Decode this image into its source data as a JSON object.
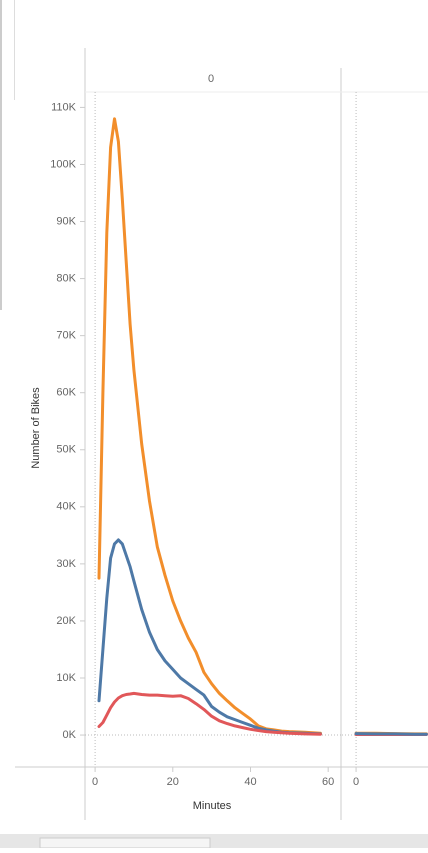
{
  "chart_data": [
    {
      "type": "line",
      "header": "0",
      "y_label": "Number of Bikes",
      "x_label": "Minutes",
      "xlim": [
        -2.6,
        63.3
      ],
      "xticks": [
        0,
        20,
        40,
        60
      ],
      "ylim": [
        -5600,
        112700
      ],
      "yticks": [
        {
          "value": 0,
          "label": "0K"
        },
        {
          "value": 10000,
          "label": "10K"
        },
        {
          "value": 20000,
          "label": "20K"
        },
        {
          "value": 30000,
          "label": "30K"
        },
        {
          "value": 40000,
          "label": "40K"
        },
        {
          "value": 50000,
          "label": "50K"
        },
        {
          "value": 60000,
          "label": "60K"
        },
        {
          "value": 70000,
          "label": "70K"
        },
        {
          "value": 80000,
          "label": "80K"
        },
        {
          "value": 90000,
          "label": "90K"
        },
        {
          "value": 100000,
          "label": "100K"
        },
        {
          "value": 110000,
          "label": "110K"
        }
      ],
      "x": [
        1,
        2,
        3,
        4,
        5,
        6,
        7,
        8,
        9,
        10,
        12,
        14,
        16,
        18,
        20,
        22,
        24,
        26,
        28,
        30,
        32,
        34,
        36,
        38,
        40,
        42,
        44,
        46,
        48,
        50,
        54,
        58
      ],
      "series": [
        {
          "color": "#f28e2b",
          "values": [
            27500,
            60000,
            88000,
            103000,
            108000,
            104000,
            94000,
            83000,
            72000,
            64000,
            51000,
            41000,
            33000,
            28000,
            23500,
            20000,
            17000,
            14500,
            11000,
            9000,
            7300,
            6000,
            4800,
            3800,
            2800,
            1600,
            1100,
            900,
            700,
            600,
            500,
            300
          ]
        },
        {
          "color": "#4e79a7",
          "values": [
            6000,
            15000,
            24000,
            31000,
            33500,
            34200,
            33500,
            31500,
            29500,
            27000,
            22000,
            18000,
            15000,
            13000,
            11500,
            10000,
            9000,
            8000,
            7000,
            5000,
            4000,
            3200,
            2700,
            2200,
            1700,
            1200,
            900,
            700,
            500,
            400,
            300,
            200
          ]
        },
        {
          "color": "#e15759",
          "values": [
            1500,
            2200,
            3500,
            4800,
            5800,
            6500,
            6900,
            7100,
            7200,
            7300,
            7100,
            7000,
            7000,
            6900,
            6800,
            6900,
            6400,
            5500,
            4500,
            3300,
            2500,
            2000,
            1600,
            1300,
            1000,
            800,
            600,
            500,
            400,
            300,
            200,
            150
          ]
        }
      ]
    },
    {
      "type": "line",
      "xlim": [
        -3.6,
        18.5
      ],
      "xticks": [
        0
      ],
      "x": [
        0,
        5,
        10,
        15,
        18
      ],
      "series": [
        {
          "color": "#f28e2b",
          "values": [
            300,
            300,
            250,
            200,
            200
          ]
        },
        {
          "color": "#e15759",
          "values": [
            100,
            100,
            100,
            100,
            100
          ]
        },
        {
          "color": "#4e79a7",
          "values": [
            250,
            200,
            200,
            150,
            150
          ]
        }
      ]
    }
  ]
}
